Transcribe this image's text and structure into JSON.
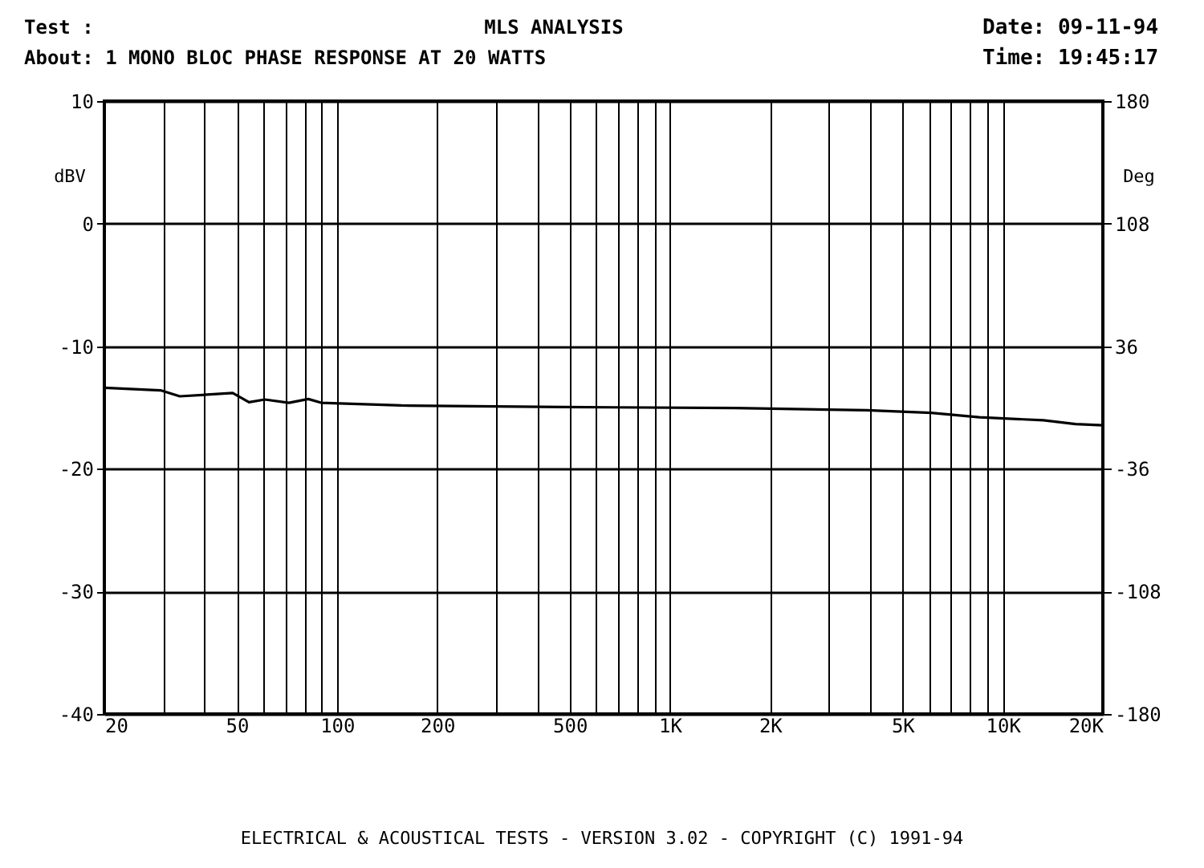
{
  "chart_data": {
    "type": "line",
    "title": "MLS ANALYSIS",
    "annotations": [
      "Test :",
      "Date: 09-11-94",
      "About:  1   MONO BLOC PHASE RESPONSE AT 20 WATTS",
      "Time: 19:45:17",
      "ELECTRICAL & ACOUSTICAL TESTS  -  VERSION 3.02  -  COPYRIGHT (C) 1991-94"
    ],
    "ylabel": "dBV",
    "y2label": "Deg",
    "log": "x",
    "grid": true,
    "xlim": [
      20,
      20000
    ],
    "xticks": [
      20,
      {
        "value": 30,
        "label": null
      },
      {
        "value": 40,
        "label": null
      },
      50,
      {
        "value": 60,
        "label": null
      },
      {
        "value": 70,
        "label": null
      },
      {
        "value": 80,
        "label": null
      },
      {
        "value": 90,
        "label": null
      },
      100,
      200,
      {
        "value": 300,
        "label": null
      },
      {
        "value": 400,
        "label": null
      },
      500,
      {
        "value": 600,
        "label": null
      },
      {
        "value": 700,
        "label": null
      },
      {
        "value": 800,
        "label": null
      },
      {
        "value": 900,
        "label": null
      },
      {
        "value": 1000,
        "label": "1K"
      },
      {
        "value": 2000,
        "label": "2K"
      },
      {
        "value": 3000,
        "label": null
      },
      {
        "value": 4000,
        "label": null
      },
      {
        "value": 5000,
        "label": "5K"
      },
      {
        "value": 6000,
        "label": null
      },
      {
        "value": 7000,
        "label": null
      },
      {
        "value": 8000,
        "label": null
      },
      {
        "value": 9000,
        "label": null
      },
      {
        "value": 10000,
        "label": "10K"
      },
      {
        "value": 20000,
        "label": "20K"
      }
    ],
    "ylim": [
      -40,
      10
    ],
    "yticks": [
      -40,
      -30,
      -20,
      -10,
      0,
      10
    ],
    "y2lim": [
      -180,
      180
    ],
    "y2ticks": [
      -180,
      -108,
      -36,
      36,
      108,
      180
    ],
    "series": [
      {
        "color": "#000000",
        "axis": "y2",
        "x": [
          20,
          29.5,
          33.7,
          48.6,
          54.4,
          60.7,
          71.7,
          82,
          89.6,
          156,
          474,
          1574,
          3910,
          6096,
          8512,
          13260,
          16560,
          20000
        ],
        "values": [
          11.6,
          10.1,
          6.6,
          8.5,
          3.1,
          4.7,
          2.8,
          5.0,
          2.8,
          1.2,
          0.3,
          -0.3,
          -1.6,
          -3.1,
          -5.7,
          -7.5,
          -9.7,
          -10.4
        ]
      }
    ]
  }
}
